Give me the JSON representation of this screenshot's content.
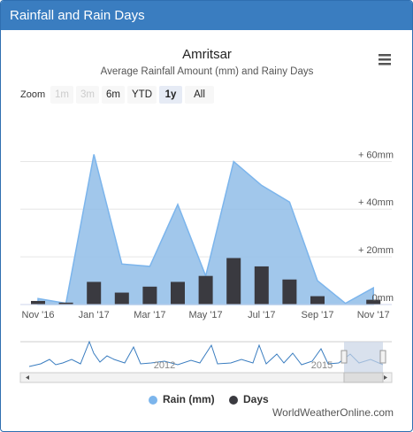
{
  "header": {
    "title": "Rainfall and Rain Days"
  },
  "chart_data": {
    "type": "area",
    "title": "Amritsar",
    "subtitle": "Average Rainfall Amount (mm) and Rainy Days",
    "categories": [
      "Nov '16",
      null,
      "Jan '17",
      null,
      "Mar '17",
      null,
      "May '17",
      null,
      "Jul '17",
      null,
      "Sep '17",
      null,
      "Nov '17"
    ],
    "series": [
      {
        "name": "Rain (mm)",
        "type": "area",
        "color": "#90bde8",
        "values": [
          2.5,
          0.5,
          63,
          17,
          16,
          42,
          12,
          60,
          50,
          43,
          10,
          0.5,
          7
        ]
      },
      {
        "name": "Days",
        "type": "column",
        "color": "#3a3a40",
        "values": [
          1.5,
          0.8,
          9.5,
          5,
          7.5,
          9.5,
          12,
          19.5,
          16,
          10.5,
          3.5,
          0,
          2
        ]
      }
    ],
    "ylim": [
      0,
      65
    ],
    "yticks": [
      {
        "value": 0,
        "label": "0mm"
      },
      {
        "value": 20,
        "label": "+ 20mm"
      },
      {
        "value": 40,
        "label": "+ 40mm"
      },
      {
        "value": 60,
        "label": "+ 60mm"
      }
    ],
    "grid": true
  },
  "zoom": {
    "label": "Zoom",
    "buttons": [
      "1m",
      "3m",
      "6m",
      "YTD",
      "1y",
      "All"
    ],
    "selected": 4,
    "disabled": [
      0,
      1
    ]
  },
  "navigator": {
    "labels": [
      "2012",
      "2015"
    ]
  },
  "credits": "WorldWeatherOnline.com"
}
